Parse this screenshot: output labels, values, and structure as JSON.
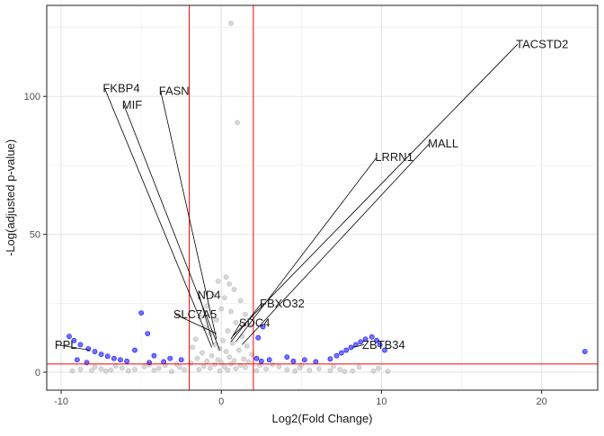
{
  "chart_data": {
    "type": "scatter",
    "title": "",
    "xlabel": "Log2(Fold Change)",
    "ylabel": "-Log(adjusted p-value)",
    "xlim": [
      -10.9,
      23.5
    ],
    "ylim": [
      -6.5,
      133
    ],
    "xticks": [
      -10,
      0,
      10,
      20
    ],
    "yticks": [
      0,
      50,
      100
    ],
    "grid": true,
    "legend": "none",
    "thresholds": {
      "vlines": [
        -2,
        2
      ],
      "hline": 3,
      "color": "#ff0000"
    },
    "colors": {
      "not_significant": "#bebebe",
      "significant": "#0000ff"
    },
    "series": [
      {
        "key": "not_significant",
        "points": [
          {
            "x": 0.6,
            "y": 126.5
          },
          {
            "x": 1.0,
            "y": 90.5
          },
          {
            "x": 0.3,
            "y": 34.5
          },
          {
            "x": -0.2,
            "y": 33
          },
          {
            "x": 0.5,
            "y": 32
          },
          {
            "x": 0.8,
            "y": 30
          },
          {
            "x": -0.5,
            "y": 28
          },
          {
            "x": 0.2,
            "y": 27
          },
          {
            "x": 1.2,
            "y": 26
          },
          {
            "x": -0.9,
            "y": 24
          },
          {
            "x": 0.0,
            "y": 23
          },
          {
            "x": 0.6,
            "y": 22
          },
          {
            "x": 1.5,
            "y": 21
          },
          {
            "x": -1.3,
            "y": 20
          },
          {
            "x": -0.3,
            "y": 19
          },
          {
            "x": 0.9,
            "y": 18
          },
          {
            "x": 1.8,
            "y": 17
          },
          {
            "x": -1.0,
            "y": 16
          },
          {
            "x": 0.4,
            "y": 15
          },
          {
            "x": -0.7,
            "y": 14
          },
          {
            "x": 1.3,
            "y": 13
          },
          {
            "x": -1.6,
            "y": 12
          },
          {
            "x": 0.1,
            "y": 11.5
          },
          {
            "x": 0.7,
            "y": 10.5
          },
          {
            "x": -0.4,
            "y": 10
          },
          {
            "x": 1.6,
            "y": 9.5
          },
          {
            "x": -1.8,
            "y": 9
          },
          {
            "x": -0.1,
            "y": 8.5
          },
          {
            "x": 1.1,
            "y": 8
          },
          {
            "x": 0.3,
            "y": 7.5
          },
          {
            "x": -1.2,
            "y": 7
          },
          {
            "x": 1.9,
            "y": 6.5
          },
          {
            "x": -0.6,
            "y": 6
          },
          {
            "x": 0.5,
            "y": 5.5
          },
          {
            "x": -1.5,
            "y": 5
          },
          {
            "x": 1.4,
            "y": 4.8
          },
          {
            "x": -0.2,
            "y": 4.5
          },
          {
            "x": 0.8,
            "y": 4.2
          },
          {
            "x": -0.9,
            "y": 4
          },
          {
            "x": 1.7,
            "y": 3.8
          },
          {
            "x": 0.0,
            "y": 3.5
          },
          {
            "x": -1.9,
            "y": 3.3
          },
          {
            "x": 0.6,
            "y": 3
          },
          {
            "x": -0.4,
            "y": 2.8
          },
          {
            "x": 1.2,
            "y": 2.5
          },
          {
            "x": -1.1,
            "y": 2.2
          },
          {
            "x": 0.2,
            "y": 2
          },
          {
            "x": 1.5,
            "y": 1.8
          },
          {
            "x": -0.7,
            "y": 1.5
          },
          {
            "x": 0.9,
            "y": 1.3
          },
          {
            "x": -1.4,
            "y": 1
          },
          {
            "x": 0.4,
            "y": 0.8
          },
          {
            "x": -0.1,
            "y": 0.5
          },
          {
            "x": -3.5,
            "y": 2.5
          },
          {
            "x": -4.8,
            "y": 2
          },
          {
            "x": -6.2,
            "y": 1.5
          },
          {
            "x": -7.5,
            "y": 1.2
          },
          {
            "x": -8.8,
            "y": 1
          },
          {
            "x": -2.6,
            "y": 1.8
          },
          {
            "x": -3.9,
            "y": 1.4
          },
          {
            "x": -5.4,
            "y": 1
          },
          {
            "x": -6.9,
            "y": 0.8
          },
          {
            "x": -8.1,
            "y": 0.6
          },
          {
            "x": -9.3,
            "y": 0.5
          },
          {
            "x": -2.3,
            "y": 0.9
          },
          {
            "x": -4.2,
            "y": 0.7
          },
          {
            "x": -5.8,
            "y": 0.5
          },
          {
            "x": -7.2,
            "y": 0.4
          },
          {
            "x": -3.1,
            "y": 0.3
          },
          {
            "x": -2.8,
            "y": 2.9
          },
          {
            "x": -4.5,
            "y": 2.7
          },
          {
            "x": -6.6,
            "y": 2.3
          },
          {
            "x": -7.9,
            "y": 1.9
          },
          {
            "x": 2.4,
            "y": 2.5
          },
          {
            "x": 3.6,
            "y": 2
          },
          {
            "x": 4.9,
            "y": 1.6
          },
          {
            "x": 6.1,
            "y": 1.3
          },
          {
            "x": 7.4,
            "y": 1
          },
          {
            "x": 2.8,
            "y": 1.2
          },
          {
            "x": 4.1,
            "y": 0.9
          },
          {
            "x": 5.5,
            "y": 0.7
          },
          {
            "x": 6.8,
            "y": 0.6
          },
          {
            "x": 8.2,
            "y": 0.5
          },
          {
            "x": 9.5,
            "y": 0.4
          },
          {
            "x": 10.4,
            "y": 0.3
          },
          {
            "x": 3.2,
            "y": 2.8
          },
          {
            "x": 5.0,
            "y": 2.6
          },
          {
            "x": 7.0,
            "y": 2.2
          },
          {
            "x": 8.6,
            "y": 1.8
          },
          {
            "x": 9.8,
            "y": 1.4
          },
          {
            "x": 2.2,
            "y": 0.6
          },
          {
            "x": 4.6,
            "y": 0.4
          },
          {
            "x": 7.7,
            "y": 0.3
          }
        ]
      },
      {
        "key": "significant",
        "points": [
          {
            "x": -9.5,
            "y": 13
          },
          {
            "x": -9.2,
            "y": 11.5
          },
          {
            "x": -8.8,
            "y": 10
          },
          {
            "x": -8.3,
            "y": 8.5
          },
          {
            "x": -7.9,
            "y": 7.5
          },
          {
            "x": -7.5,
            "y": 6.5
          },
          {
            "x": -7.1,
            "y": 5.8
          },
          {
            "x": -6.7,
            "y": 5
          },
          {
            "x": -6.3,
            "y": 4.5
          },
          {
            "x": -5.9,
            "y": 4
          },
          {
            "x": -9.0,
            "y": 4.5
          },
          {
            "x": -8.4,
            "y": 3.5
          },
          {
            "x": -5.0,
            "y": 21.5
          },
          {
            "x": -4.6,
            "y": 14
          },
          {
            "x": -5.4,
            "y": 8
          },
          {
            "x": -4.2,
            "y": 6
          },
          {
            "x": -3.2,
            "y": 5
          },
          {
            "x": -2.5,
            "y": 4.5
          },
          {
            "x": -4.5,
            "y": 3.5
          },
          {
            "x": -3.6,
            "y": 3.8
          },
          {
            "x": 2.3,
            "y": 12.5
          },
          {
            "x": 2.2,
            "y": 5
          },
          {
            "x": 2.5,
            "y": 4
          },
          {
            "x": 2.6,
            "y": 16.5
          },
          {
            "x": 3.0,
            "y": 4.5
          },
          {
            "x": 4.1,
            "y": 5.5
          },
          {
            "x": 4.5,
            "y": 4
          },
          {
            "x": 5.2,
            "y": 4.5
          },
          {
            "x": 5.9,
            "y": 3.8
          },
          {
            "x": 6.8,
            "y": 4.8
          },
          {
            "x": 7.2,
            "y": 6
          },
          {
            "x": 7.5,
            "y": 7
          },
          {
            "x": 7.8,
            "y": 8
          },
          {
            "x": 8.1,
            "y": 9
          },
          {
            "x": 8.4,
            "y": 10
          },
          {
            "x": 8.7,
            "y": 11
          },
          {
            "x": 9.0,
            "y": 12
          },
          {
            "x": 9.4,
            "y": 12.8
          },
          {
            "x": 9.7,
            "y": 11.5
          },
          {
            "x": 9.9,
            "y": 10
          },
          {
            "x": 10.2,
            "y": 8
          },
          {
            "x": 22.7,
            "y": 7.5
          }
        ]
      }
    ],
    "labels": [
      {
        "name": "TACSTD2",
        "x": 18.4,
        "y": 119,
        "px": 0.7,
        "py": 13
      },
      {
        "name": "FKBP4",
        "x": -7.4,
        "y": 103,
        "px": -0.6,
        "py": 9
      },
      {
        "name": "FASN",
        "x": -3.9,
        "y": 102,
        "px": -0.3,
        "py": 12
      },
      {
        "name": "MIF",
        "x": -6.2,
        "y": 97,
        "px": -0.1,
        "py": 8
      },
      {
        "name": "MALL",
        "x": 12.9,
        "y": 83,
        "px": 1.3,
        "py": 10
      },
      {
        "name": "LRRN1",
        "x": 9.6,
        "y": 78,
        "px": 0.9,
        "py": 11
      },
      {
        "name": "ND4",
        "x": -1.5,
        "y": 28,
        "px": -0.5,
        "py": 10
      },
      {
        "name": "FBXO32",
        "x": 2.4,
        "y": 25,
        "px": 0.6,
        "py": 11
      },
      {
        "name": "SLC7A5",
        "x": -3.0,
        "y": 21,
        "px": -0.3,
        "py": 14
      },
      {
        "name": "SDC4",
        "x": 1.1,
        "y": 18,
        "px": 0.6,
        "py": 12
      },
      {
        "name": "PPL",
        "x": -10.4,
        "y": 10,
        "px": -8.2,
        "py": 8
      },
      {
        "name": "ZBTB34",
        "x": 8.8,
        "y": 10,
        "px": 8.2,
        "py": 9
      }
    ]
  }
}
